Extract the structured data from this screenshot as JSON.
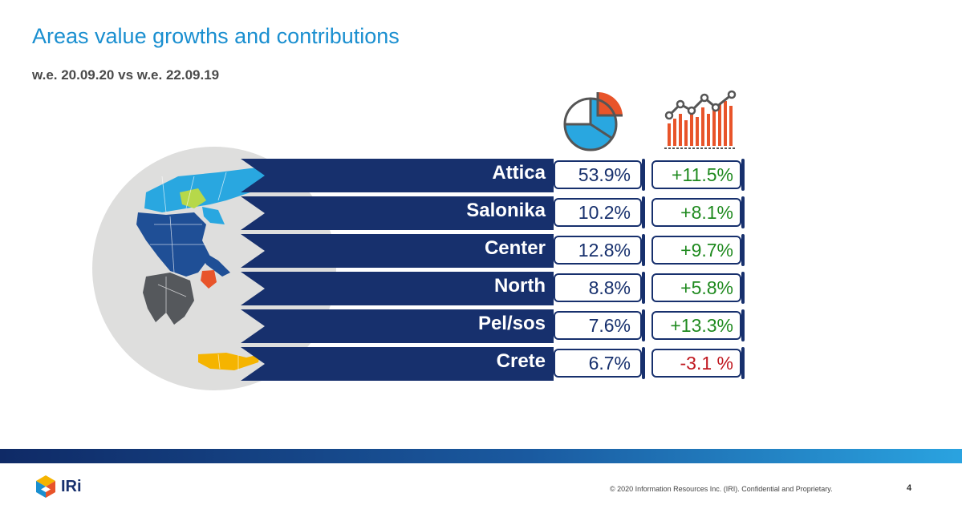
{
  "header": {
    "title": "Areas value growths and contributions",
    "subtitle": "w.e. 20.09.20 vs w.e. 22.09.19"
  },
  "icons": {
    "share": "pie-chart-icon",
    "growth": "line-bar-chart-icon"
  },
  "rows": [
    {
      "region": "Attica",
      "share": "53.9%",
      "growth": "+11.5%",
      "trend": "positive"
    },
    {
      "region": "Salonika",
      "share": "10.2%",
      "growth": "+8.1%",
      "trend": "positive"
    },
    {
      "region": "Center",
      "share": "12.8%",
      "growth": "+9.7%",
      "trend": "positive"
    },
    {
      "region": "North",
      "share": "8.8%",
      "growth": "+5.8%",
      "trend": "positive"
    },
    {
      "region": "Pel/sos",
      "share": "7.6%",
      "growth": "+13.3%",
      "trend": "positive"
    },
    {
      "region": "Crete",
      "share": "6.7%",
      "growth": "-3.1 %",
      "trend": "negative"
    }
  ],
  "colors": {
    "title": "#1a8fd0",
    "navy": "#17306d",
    "positive": "#1f8a1f",
    "negative": "#c0171f",
    "map_attica": "#e8542a",
    "map_salonika": "#b6d84a",
    "map_crete": "#f5b400",
    "map_north": "#29a7e0",
    "map_center": "#1f4f96",
    "map_pelsos": "#55585c"
  },
  "footer": {
    "logo_text": "IRi",
    "copyright": "© 2020 Information Resources Inc. (IRI). Confidential and Proprietary.",
    "page_number": "4"
  }
}
